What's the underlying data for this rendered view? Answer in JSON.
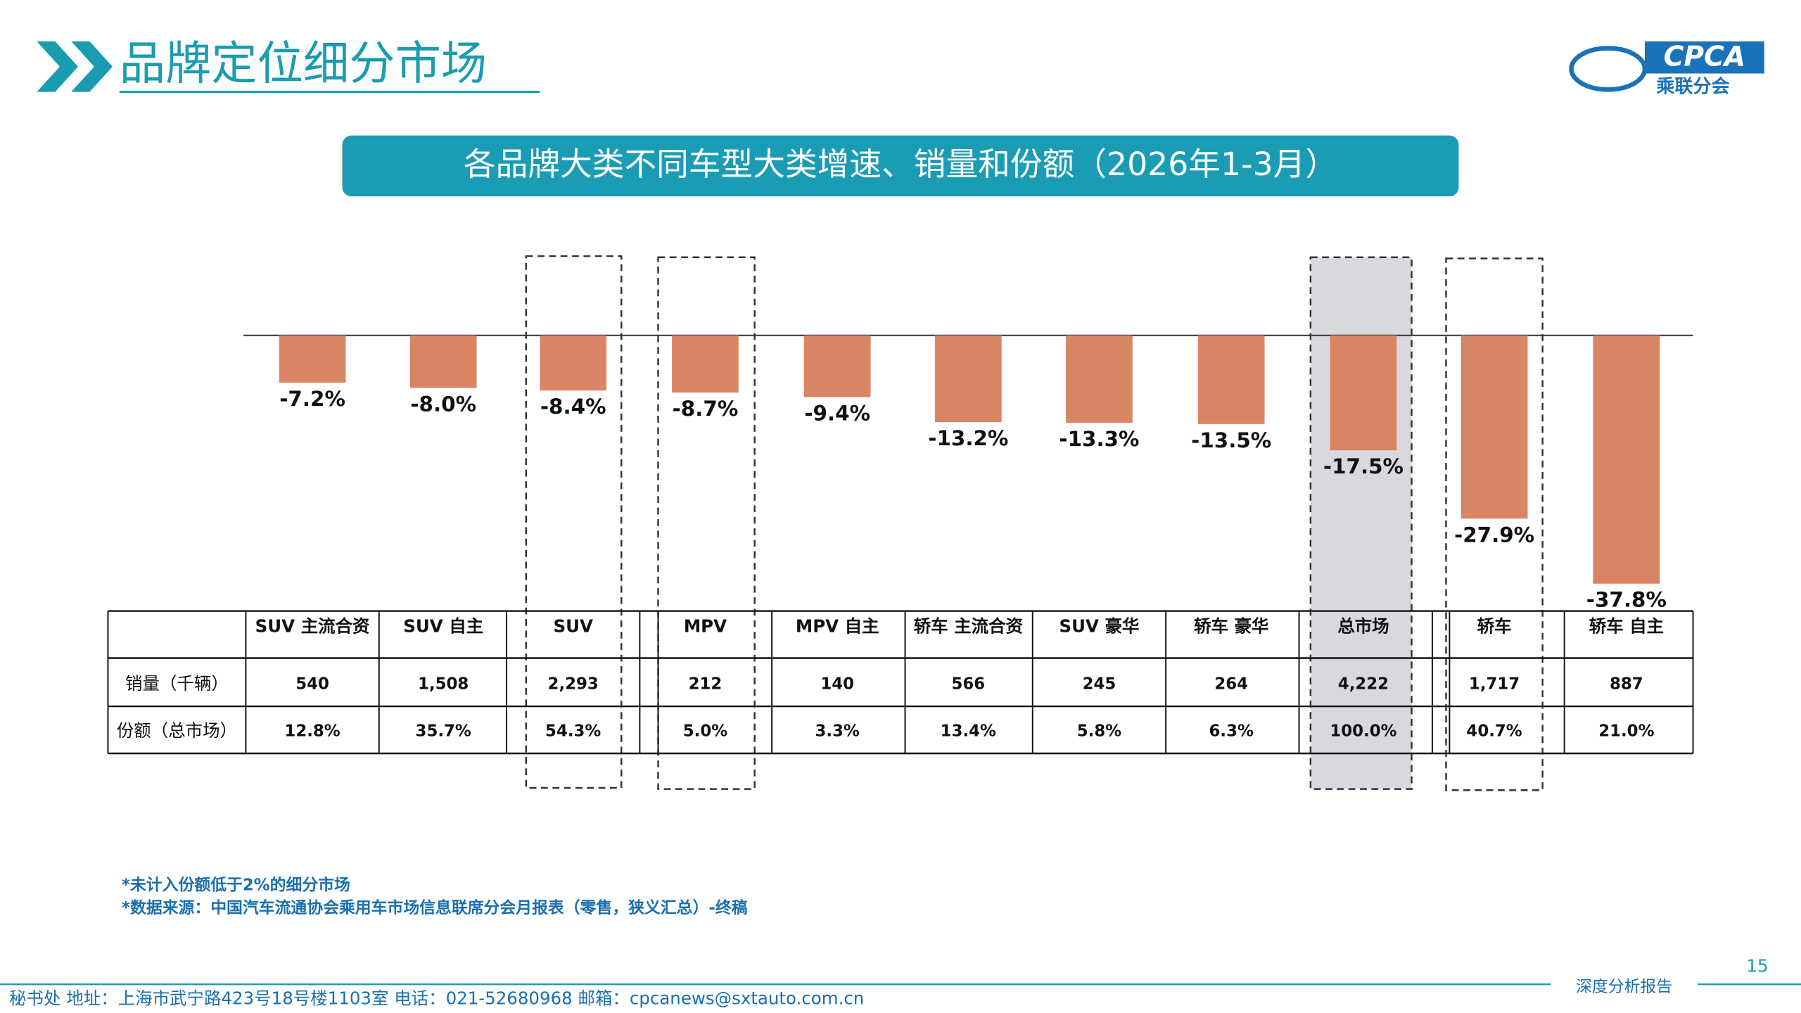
{
  "header": {
    "title": "品牌定位细分市场",
    "logo_text": "CPCA",
    "logo_subtext": "乘联分会"
  },
  "chart_data": {
    "type": "bar",
    "title": "各品牌大类不同车型大类增速、销量和份额（2026年1-3月）",
    "categories": [
      "SUV 主流合资",
      "SUV 自主",
      "SUV",
      "MPV",
      "MPV 自主",
      "轿车 主流合资",
      "SUV 豪华",
      "轿车 豪华",
      "总市场",
      "轿车",
      "轿车 自主"
    ],
    "values": [
      -7.2,
      -8.0,
      -8.4,
      -8.7,
      -9.4,
      -13.2,
      -13.3,
      -13.5,
      -17.5,
      -27.9,
      -37.8
    ],
    "value_labels": [
      "-7.2%",
      "-8.0%",
      "-8.4%",
      "-8.7%",
      "-9.4%",
      "-13.2%",
      "-13.3%",
      "-13.5%",
      "-17.5%",
      "-27.9%",
      "-37.8%"
    ],
    "color": "#d98565"
  },
  "table": {
    "row_headers": [
      "销量（千辆）",
      "份额（总市场）"
    ],
    "rows": [
      [
        "540",
        "1,508",
        "2,293",
        "212",
        "140",
        "566",
        "245",
        "264",
        "4,222",
        "1,717",
        "887"
      ],
      [
        "12.8%",
        "35.7%",
        "54.3%",
        "5.0%",
        "3.3%",
        "13.4%",
        "5.8%",
        "6.3%",
        "100.0%",
        "40.7%",
        "21.0%"
      ]
    ]
  },
  "notes": [
    "*未计入份额低于2%的细分市场",
    "*数据来源：中国汽车流通协会乘用车市场信息联席分会月报表（零售，狭义汇总）-终稿"
  ],
  "footer": {
    "contact": "秘书处   地址：上海市武宁路423号18号楼1103室  电话：021-52680968   邮箱：cpcanews@sxtauto.com.cn",
    "tag": "深度分析报告",
    "page": "15"
  }
}
